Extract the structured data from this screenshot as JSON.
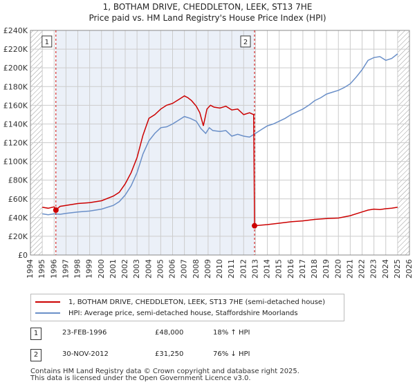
{
  "title_line1": "1, BOTHAM DRIVE, CHEDDLETON, LEEK, ST13 7HE",
  "title_line2": "Price paid vs. HM Land Registry's House Price Index (HPI)",
  "colors": {
    "red": "#cc0000",
    "blue": "#6a8fc8",
    "grid": "#cccccc",
    "shade": "#dde6f4",
    "hatch": "#999999"
  },
  "chart_data": {
    "type": "line",
    "title": "1, BOTHAM DRIVE, CHEDDLETON, LEEK, ST13 7HE",
    "subtitle": "Price paid vs. HM Land Registry's House Price Index (HPI)",
    "xlabel": "",
    "ylabel": "",
    "xlim": [
      1994,
      2026
    ],
    "ylim": [
      0,
      240000
    ],
    "y_ticks": [
      0,
      20000,
      40000,
      60000,
      80000,
      100000,
      120000,
      140000,
      160000,
      180000,
      200000,
      220000,
      240000
    ],
    "y_tick_labels": [
      "£0",
      "£20K",
      "£40K",
      "£60K",
      "£80K",
      "£100K",
      "£120K",
      "£140K",
      "£160K",
      "£180K",
      "£200K",
      "£220K",
      "£240K"
    ],
    "x_ticks": [
      1994,
      1995,
      1996,
      1997,
      1998,
      1999,
      2000,
      2001,
      2002,
      2003,
      2004,
      2005,
      2006,
      2007,
      2008,
      2009,
      2010,
      2011,
      2012,
      2013,
      2014,
      2015,
      2016,
      2017,
      2018,
      2019,
      2020,
      2021,
      2022,
      2023,
      2024,
      2025,
      2026
    ],
    "grid": true,
    "shaded_span": [
      1996.15,
      2012.92
    ],
    "hatched_regions": [
      [
        1994,
        1995.0
      ],
      [
        2025.0,
        2026
      ]
    ],
    "series": [
      {
        "name": "1, BOTHAM DRIVE, CHEDDLETON, LEEK, ST13 7HE (semi-detached house)",
        "color": "#cc0000",
        "x": [
          1995.0,
          1995.5,
          1996.0,
          1996.15,
          1996.5,
          1997.0,
          1998.0,
          1999.0,
          2000.0,
          2001.0,
          2001.5,
          2002.0,
          2002.5,
          2003.0,
          2003.5,
          2004.0,
          2004.5,
          2005.0,
          2005.5,
          2006.0,
          2006.5,
          2007.0,
          2007.3,
          2007.6,
          2008.0,
          2008.3,
          2008.6,
          2008.9,
          2009.2,
          2009.5,
          2010.0,
          2010.5,
          2011.0,
          2011.5,
          2012.0,
          2012.5,
          2012.85,
          2012.92,
          2013.5,
          2014.0,
          2015.0,
          2016.0,
          2017.0,
          2018.0,
          2019.0,
          2020.0,
          2021.0,
          2022.0,
          2022.5,
          2023.0,
          2023.5,
          2024.0,
          2024.5,
          2025.0
        ],
        "y": [
          51000,
          50000,
          51500,
          48000,
          52000,
          53000,
          55000,
          56000,
          58000,
          63000,
          67000,
          76000,
          88000,
          104000,
          128000,
          146000,
          150000,
          156000,
          160000,
          162000,
          166000,
          170000,
          168000,
          165000,
          159000,
          152000,
          138000,
          156000,
          160000,
          158000,
          157000,
          159000,
          155000,
          156000,
          150000,
          152000,
          150000,
          31250,
          32000,
          32500,
          34000,
          35500,
          36500,
          38000,
          39000,
          39500,
          42000,
          46000,
          48000,
          49000,
          48500,
          49500,
          50000,
          51000
        ]
      },
      {
        "name": "HPI: Average price, semi-detached house, Staffordshire Moorlands",
        "color": "#6a8fc8",
        "x": [
          1995.0,
          1995.5,
          1996.0,
          1996.5,
          1997.0,
          1998.0,
          1999.0,
          2000.0,
          2001.0,
          2001.5,
          2002.0,
          2002.5,
          2003.0,
          2003.5,
          2004.0,
          2004.5,
          2005.0,
          2005.5,
          2006.0,
          2006.5,
          2007.0,
          2007.5,
          2008.0,
          2008.4,
          2008.8,
          2009.1,
          2009.4,
          2010.0,
          2010.5,
          2011.0,
          2011.5,
          2012.0,
          2012.5,
          2013.0,
          2013.5,
          2014.0,
          2014.5,
          2015.0,
          2015.5,
          2016.0,
          2016.5,
          2017.0,
          2017.5,
          2018.0,
          2018.5,
          2019.0,
          2019.5,
          2020.0,
          2020.5,
          2021.0,
          2021.5,
          2022.0,
          2022.5,
          2023.0,
          2023.5,
          2024.0,
          2024.5,
          2025.0
        ],
        "y": [
          44000,
          43000,
          44000,
          43500,
          44500,
          46000,
          47000,
          49000,
          53000,
          57000,
          64000,
          74000,
          88000,
          108000,
          122000,
          130000,
          136000,
          137000,
          140000,
          144000,
          148000,
          146000,
          143000,
          135000,
          130000,
          136000,
          133000,
          132000,
          133000,
          127000,
          129000,
          127000,
          126000,
          130000,
          134000,
          138000,
          140000,
          143000,
          146000,
          150000,
          153000,
          156000,
          160000,
          165000,
          168000,
          172000,
          174000,
          176000,
          179000,
          183000,
          190000,
          198000,
          208000,
          211000,
          212000,
          208000,
          210000,
          215000
        ]
      }
    ],
    "annotations": [
      {
        "label": "1",
        "x": 1996.15,
        "y": 48000
      },
      {
        "label": "2",
        "x": 2012.92,
        "y": 31250
      }
    ]
  },
  "legend": {
    "red_label": "1, BOTHAM DRIVE, CHEDDLETON, LEEK, ST13 7HE (semi-detached house)",
    "blue_label": "HPI: Average price, semi-detached house, Staffordshire Moorlands"
  },
  "sales": [
    {
      "num": "1",
      "date": "23-FEB-1996",
      "price": "£48,000",
      "hpi": "18% ↑ HPI"
    },
    {
      "num": "2",
      "date": "30-NOV-2012",
      "price": "£31,250",
      "hpi": "76% ↓ HPI"
    }
  ],
  "footer_line1": "Contains HM Land Registry data © Crown copyright and database right 2025.",
  "footer_line2": "This data is licensed under the Open Government Licence v3.0."
}
